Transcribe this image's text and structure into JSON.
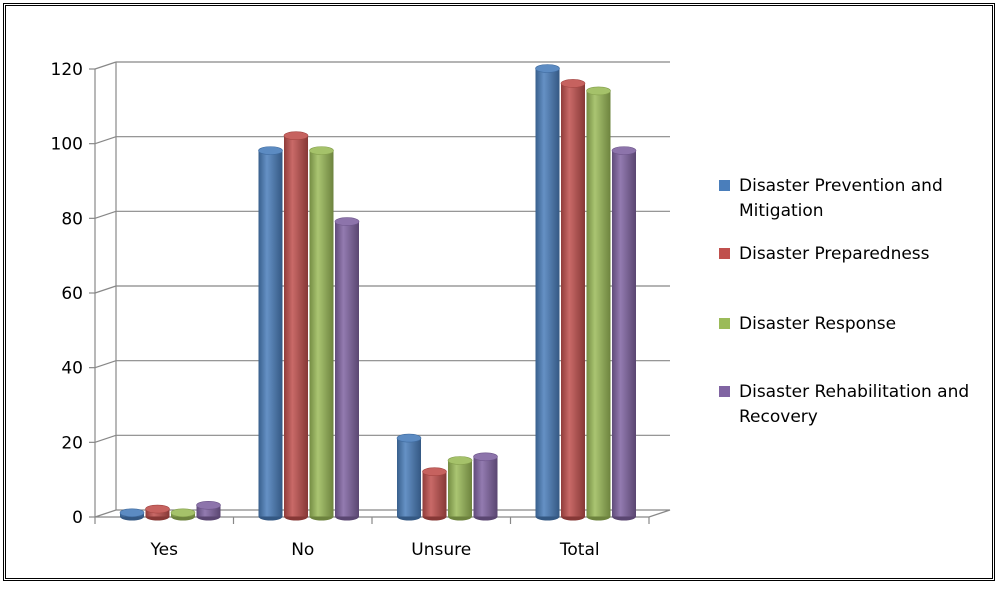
{
  "chart_data": {
    "type": "bar",
    "categories": [
      "Yes",
      "No",
      "Unsure",
      "Total"
    ],
    "series": [
      {
        "name": "Disaster Prevention and Mitigation",
        "color": "#4a7ebb",
        "values": [
          1,
          98,
          21,
          120
        ]
      },
      {
        "name": "Disaster Preparedness",
        "color": "#c0504d",
        "values": [
          2,
          102,
          12,
          116
        ]
      },
      {
        "name": "Disaster Response",
        "color": "#9bbb59",
        "values": [
          1,
          98,
          15,
          114
        ]
      },
      {
        "name": "Disaster Rehabilitation and Recovery",
        "color": "#8064a2",
        "values": [
          3,
          79,
          16,
          98
        ]
      }
    ],
    "ylim": [
      0,
      120
    ],
    "yticks": [
      0,
      20,
      40,
      60,
      80,
      100,
      120
    ],
    "grid": true,
    "legend_position": "right",
    "style": "3d-cylinder"
  }
}
